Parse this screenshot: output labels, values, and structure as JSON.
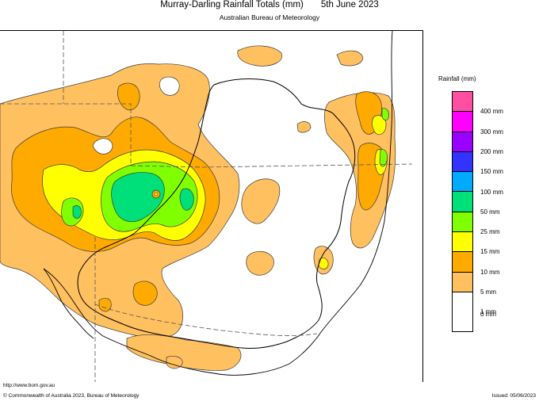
{
  "header": {
    "title": "Murray-Darling Rainfall Totals (mm)",
    "date": "5th June 2023",
    "subtitle": "Australian Bureau of Meteorology"
  },
  "legend": {
    "title": "Rainfall (mm)",
    "items": [
      {
        "label": "400 mm",
        "color": "#ff4fa0"
      },
      {
        "label": "300 mm",
        "color": "#ff00ff"
      },
      {
        "label": "200 mm",
        "color": "#9900ff"
      },
      {
        "label": "150 mm",
        "color": "#3333ff"
      },
      {
        "label": "100 mm",
        "color": "#00aaff"
      },
      {
        "label": "50 mm",
        "color": "#00e07a"
      },
      {
        "label": "25 mm",
        "color": "#80ff00"
      },
      {
        "label": "15 mm",
        "color": "#ffff00"
      },
      {
        "label": "10 mm",
        "color": "#ffaa00"
      },
      {
        "label": "5 mm",
        "color": "#ffc060"
      },
      {
        "label": "1 mm",
        "color": "#ffffff"
      }
    ],
    "zero_label": "0 mm"
  },
  "footer": {
    "url": "http://www.bom.gov.au",
    "copyright": "© Commonwealth of Australia 2023, Bureau of Meteorology",
    "issued": "Issued: 05/06/2023"
  }
}
